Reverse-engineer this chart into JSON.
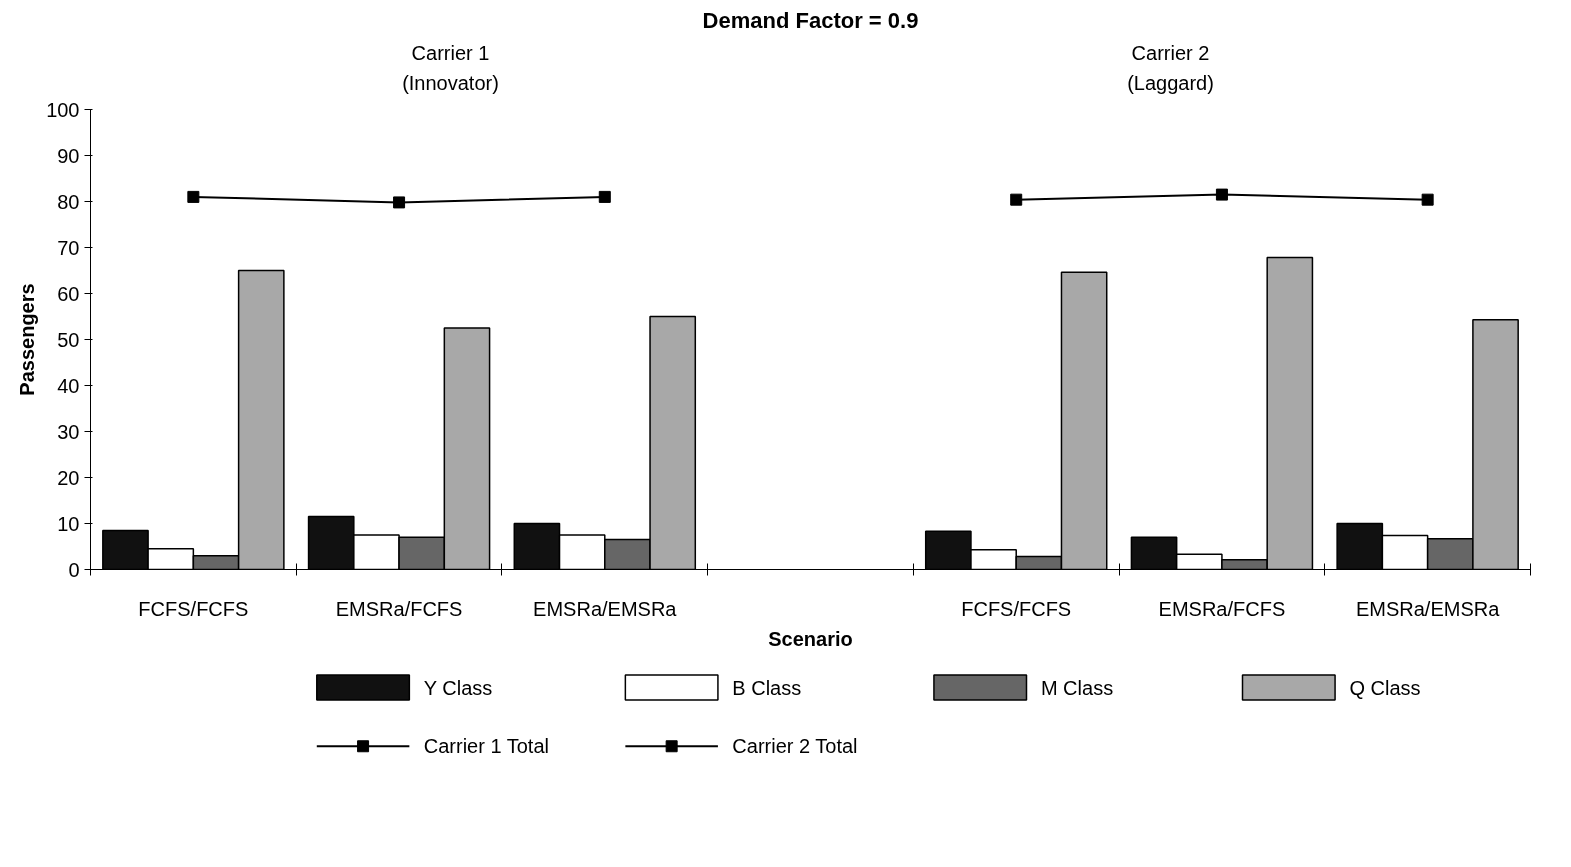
{
  "chart_data": {
    "type": "bar",
    "title": "Demand Factor = 0.9",
    "xlabel": "Scenario",
    "ylabel": "Passengers",
    "annotations": [
      "Carrier 1\n(Innovator)",
      "Carrier 2\n(Laggard)"
    ],
    "categories": [
      "FCFS/FCFS",
      "EMSRa/FCFS",
      "EMSRa/EMSRa",
      null,
      "FCFS/FCFS",
      "EMSRa/FCFS",
      "EMSRa/EMSRa"
    ],
    "series": [
      {
        "name": "Y Class",
        "color": "#111111",
        "values": [
          8.5,
          11.5,
          10,
          null,
          8.3,
          7,
          10
        ]
      },
      {
        "name": "B Class",
        "color": "#ffffff",
        "values": [
          4.5,
          7.5,
          7.5,
          null,
          4.3,
          3.3,
          7.4
        ]
      },
      {
        "name": "M Class",
        "color": "#666666",
        "values": [
          3,
          7,
          6.5,
          null,
          2.8,
          2.1,
          6.7
        ]
      },
      {
        "name": "Q Class",
        "color": "#a8a8a8",
        "values": [
          65,
          52.5,
          55,
          null,
          64.6,
          67.8,
          54.3
        ]
      },
      {
        "name": "Carrier 1 Total",
        "type": "line",
        "color": "#000000",
        "values": [
          81,
          79.8,
          81,
          null,
          null,
          null,
          null
        ]
      },
      {
        "name": "Carrier 2 Total",
        "type": "line",
        "color": "#000000",
        "values": [
          null,
          null,
          null,
          null,
          80.4,
          81.5,
          80.4
        ]
      }
    ],
    "ylim": [
      0,
      100
    ],
    "yticks": [
      0,
      10,
      20,
      30,
      40,
      50,
      60,
      70,
      80,
      90,
      100
    ],
    "grid": false,
    "legend": "bottom",
    "marker": "square",
    "line_style": "solid"
  }
}
